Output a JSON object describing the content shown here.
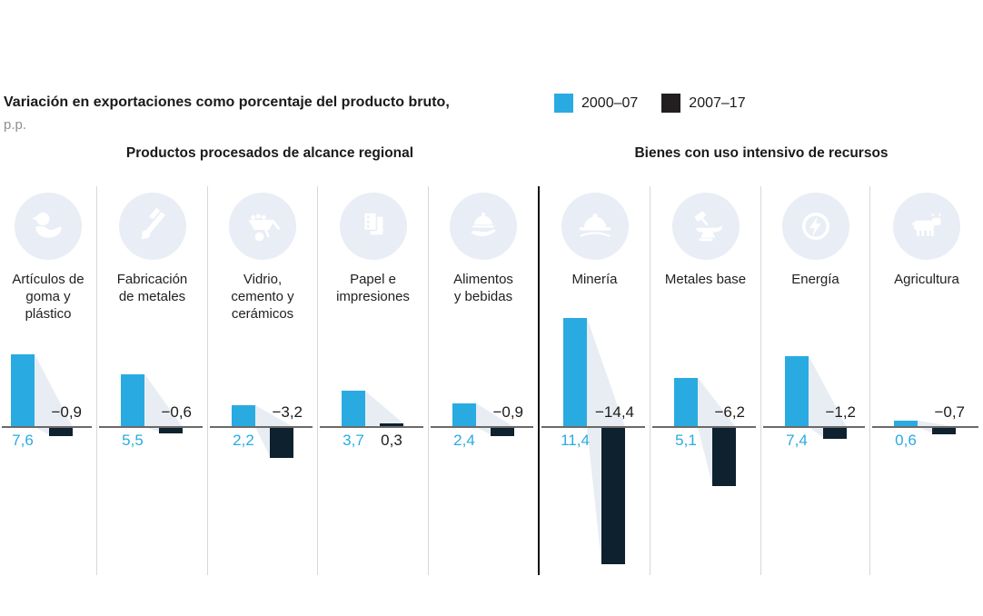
{
  "title": {
    "line1": "Variación en exportaciones como porcentaje del producto bruto,",
    "line2": "p.p."
  },
  "legend": {
    "items": [
      {
        "label": "2000–07",
        "color": "#29abe2"
      },
      {
        "label": "2007–17",
        "color": "#231f20"
      }
    ]
  },
  "groups": [
    {
      "header": "Productos procesados de alcance regional"
    },
    {
      "header": "Bienes con uso intensivo de recursos"
    }
  ],
  "colors": {
    "accent_blue": "#29abe2",
    "dark_navy": "#0d212f",
    "wedge": "#e8edf3",
    "icon_circle": "#e9edf5",
    "axis": "#6a6a6a",
    "divider_light": "#d8d8d8",
    "divider_strong": "#111111",
    "text": "#1a1a1a",
    "muted": "#8f8f8f",
    "value_text": "#1c1c1c"
  },
  "chart_data": {
    "type": "bar",
    "title": "Variación en exportaciones como porcentaje del producto bruto, p.p.",
    "unit": "p.p.",
    "grid": false,
    "legend_position": "top-right",
    "ylim": [
      -14.4,
      11.4
    ],
    "series": [
      {
        "name": "2000–07",
        "color": "#29abe2"
      },
      {
        "name": "2007–17",
        "color": "#0d212f"
      }
    ],
    "categories": [
      {
        "label": "Artículos de goma y plástico",
        "label_lines": [
          "Artículos de",
          "goma y",
          "plástico"
        ],
        "icon": "rubber-duck",
        "group": 0,
        "values": [
          7.6,
          -0.9
        ],
        "value_labels": [
          "7,6",
          "−0,9"
        ]
      },
      {
        "label": "Fabricación de metales",
        "label_lines": [
          "Fabricación",
          "de metales"
        ],
        "icon": "caliper",
        "group": 0,
        "values": [
          5.5,
          -0.6
        ],
        "value_labels": [
          "5,5",
          "−0,6"
        ]
      },
      {
        "label": "Vidrio, cemento y cerámicos",
        "label_lines": [
          "Vidrio,",
          "cemento y",
          "cerámicos"
        ],
        "icon": "wheelbarrow",
        "group": 0,
        "values": [
          2.2,
          -3.2
        ],
        "value_labels": [
          "2,2",
          "−3,2"
        ]
      },
      {
        "label": "Papel e impresiones",
        "label_lines": [
          "Papel e",
          "impresiones"
        ],
        "icon": "paper-sheets",
        "group": 0,
        "values": [
          3.7,
          0.3
        ],
        "value_labels": [
          "3,7",
          "0,3"
        ]
      },
      {
        "label": "Alimentos y bebidas",
        "label_lines": [
          "Alimentos",
          "y bebidas"
        ],
        "icon": "food-dish",
        "group": 0,
        "values": [
          2.4,
          -0.9
        ],
        "value_labels": [
          "2,4",
          "−0,9"
        ]
      },
      {
        "label": "Minería",
        "label_lines": [
          "Minería"
        ],
        "icon": "mining-helmet",
        "group": 1,
        "values": [
          11.4,
          -14.4
        ],
        "value_labels": [
          "11,4",
          "−14,4"
        ]
      },
      {
        "label": "Metales base",
        "label_lines": [
          "Metales base"
        ],
        "icon": "anvil-hammer",
        "group": 1,
        "values": [
          5.1,
          -6.2
        ],
        "value_labels": [
          "5,1",
          "−6,2"
        ]
      },
      {
        "label": "Energía",
        "label_lines": [
          "Energía"
        ],
        "icon": "energy-bolt",
        "group": 1,
        "values": [
          7.4,
          -1.2
        ],
        "value_labels": [
          "7,4",
          "−1,2"
        ]
      },
      {
        "label": "Agricultura",
        "label_lines": [
          "Agricultura"
        ],
        "icon": "cow",
        "group": 1,
        "values": [
          0.6,
          -0.7
        ],
        "value_labels": [
          "0,6",
          "−0,7"
        ]
      }
    ]
  }
}
